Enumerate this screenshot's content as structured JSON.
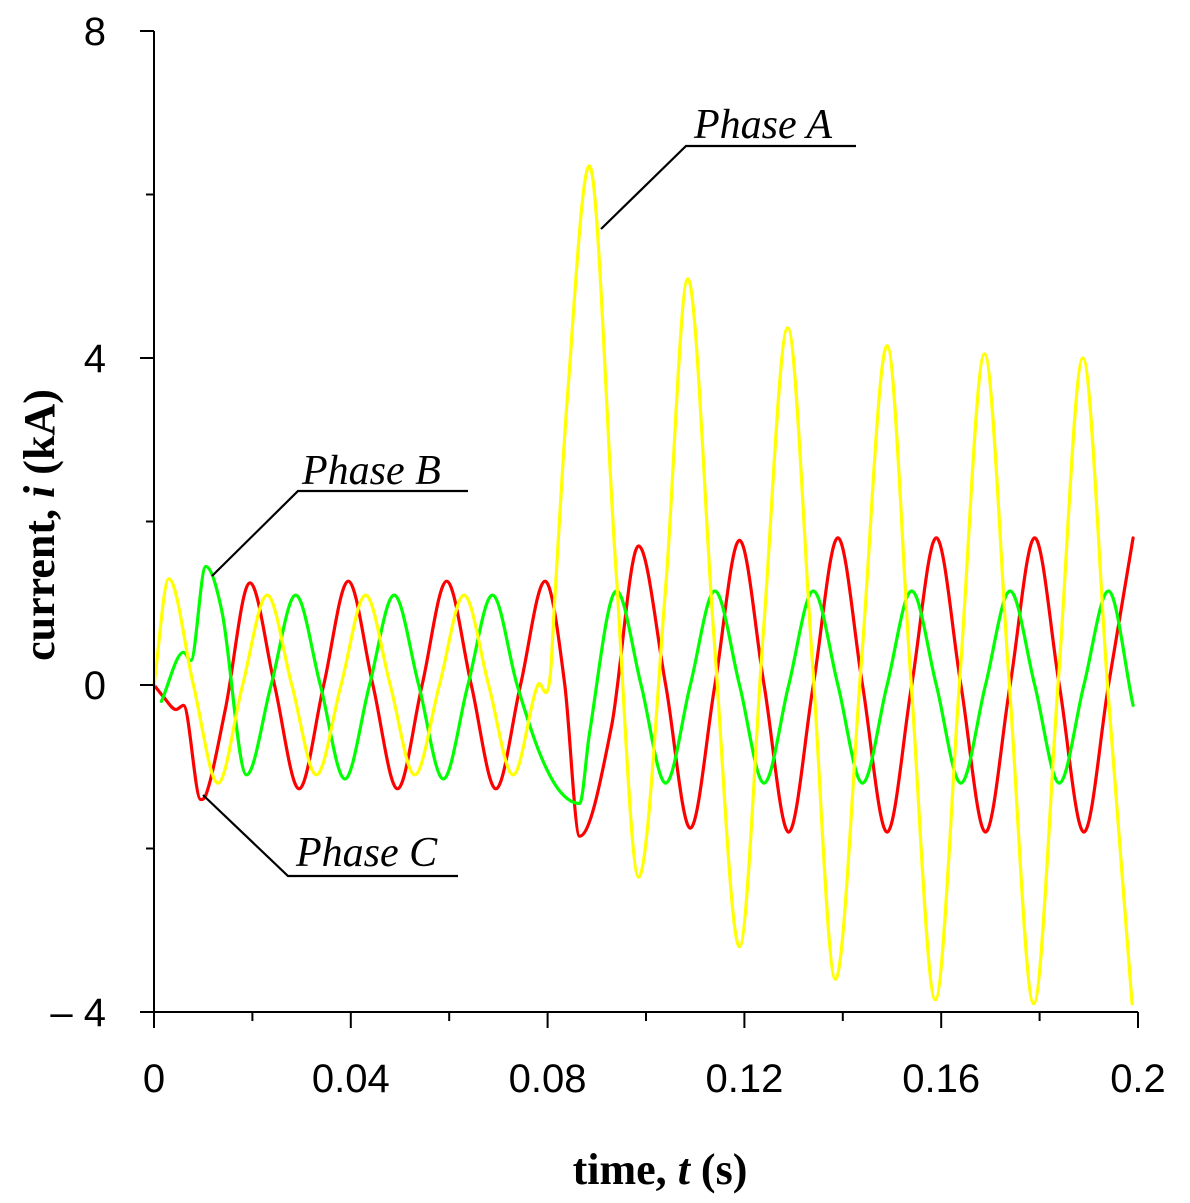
{
  "chart_data": {
    "type": "line",
    "title": "",
    "xlabel": {
      "pre": "time, ",
      "var": "t",
      "unit": " (s)"
    },
    "ylabel": {
      "pre": "current, ",
      "var": "i",
      "unit": " (kA)"
    },
    "xlim": [
      0,
      0.2
    ],
    "ylim": [
      -4,
      8
    ],
    "x_major_ticks": [
      0,
      0.04,
      0.08,
      0.12,
      0.16,
      0.2
    ],
    "x_major_tick_labels": [
      "0",
      "0.04",
      "0.08",
      "0.12",
      "0.16",
      "0.2"
    ],
    "x_minor_ticks": [
      0.02,
      0.06,
      0.1,
      0.14,
      0.18
    ],
    "y_major_ticks": [
      -4,
      0,
      4,
      8
    ],
    "y_major_tick_labels": [
      "– 4",
      "0",
      "4",
      "8"
    ],
    "y_minor_ticks": [
      -2,
      2,
      6
    ],
    "grid": false,
    "fault_time": 0.08,
    "series": [
      {
        "name": "Phase A",
        "color": "#ffff00",
        "x": [
          0,
          0.003,
          0.008,
          0.013,
          0.018,
          0.023,
          0.028,
          0.033,
          0.038,
          0.043,
          0.048,
          0.053,
          0.058,
          0.063,
          0.068,
          0.073,
          0.078,
          0.0805,
          0.0815,
          0.084,
          0.0885,
          0.0938,
          0.0985,
          0.104,
          0.1085,
          0.1138,
          0.119,
          0.1238,
          0.1288,
          0.1338,
          0.1385,
          0.1438,
          0.149,
          0.1538,
          0.1588,
          0.1638,
          0.1688,
          0.1738,
          0.1788,
          0.1838,
          0.1888,
          0.1938,
          0.1988
        ],
        "values": [
          0,
          1.3,
          0,
          -1.2,
          0,
          1.1,
          0,
          -1.1,
          0,
          1.1,
          0,
          -1.1,
          0,
          1.1,
          0,
          -1.1,
          0,
          0.1,
          1.1,
          3.5,
          6.35,
          1.5,
          -2.35,
          1.2,
          4.97,
          0.6,
          -3.2,
          0.6,
          4.37,
          0.3,
          -3.6,
          0.3,
          4.15,
          0.1,
          -3.85,
          0.1,
          4.05,
          0.05,
          -3.9,
          0.05,
          4.0,
          0,
          -3.9
        ]
      },
      {
        "name": "Phase B",
        "color": "#00ff00",
        "x": [
          0.0015,
          0.006,
          0.0075,
          0.0105,
          0.0138,
          0.0188,
          0.0238,
          0.0288,
          0.0338,
          0.0388,
          0.0438,
          0.0488,
          0.0538,
          0.0588,
          0.0638,
          0.0688,
          0.0738,
          0.0785,
          0.0825,
          0.0865,
          0.0885,
          0.094,
          0.099,
          0.104,
          0.109,
          0.114,
          0.119,
          0.124,
          0.129,
          0.134,
          0.139,
          0.144,
          0.149,
          0.154,
          0.159,
          0.164,
          0.169,
          0.174,
          0.179,
          0.184,
          0.189,
          0.194,
          0.199
        ],
        "values": [
          -0.2,
          0.4,
          0.3,
          1.45,
          0.9,
          -1.1,
          0,
          1.1,
          0,
          -1.15,
          0,
          1.1,
          0,
          -1.15,
          0,
          1.1,
          0,
          -0.85,
          -1.3,
          -1.45,
          -0.6,
          1.15,
          0,
          -1.2,
          0,
          1.15,
          0,
          -1.2,
          0,
          1.15,
          0,
          -1.2,
          0,
          1.15,
          0,
          -1.2,
          0,
          1.15,
          0,
          -1.2,
          0,
          1.15,
          -0.25
        ]
      },
      {
        "name": "Phase C",
        "color": "#ff0000",
        "x": [
          0,
          0.002,
          0.0045,
          0.006,
          0.0095,
          0.0105,
          0.0145,
          0.0195,
          0.0245,
          0.0295,
          0.0345,
          0.0395,
          0.0445,
          0.0495,
          0.0545,
          0.0595,
          0.0645,
          0.0695,
          0.0745,
          0.0795,
          0.0835,
          0.0865,
          0.093,
          0.0985,
          0.104,
          0.109,
          0.114,
          0.119,
          0.124,
          0.129,
          0.134,
          0.139,
          0.144,
          0.149,
          0.154,
          0.159,
          0.164,
          0.169,
          0.174,
          0.179,
          0.184,
          0.189,
          0.194,
          0.199
        ],
        "values": [
          0,
          -0.15,
          -0.3,
          -0.25,
          -1.4,
          -1.35,
          -0.3,
          1.25,
          0,
          -1.27,
          0,
          1.27,
          0,
          -1.27,
          0,
          1.27,
          0,
          -1.27,
          0,
          1.27,
          0,
          -1.85,
          -0.5,
          1.7,
          0,
          -1.75,
          0,
          1.77,
          0,
          -1.8,
          0,
          1.8,
          0,
          -1.8,
          0,
          1.8,
          0,
          -1.8,
          0,
          1.8,
          0,
          -1.8,
          0,
          1.8
        ]
      }
    ],
    "annotations": [
      {
        "text": "Phase A",
        "series": "Phase A",
        "label_pos": "upper-mid"
      },
      {
        "text": "Phase B",
        "series": "Phase B",
        "label_pos": "upper-left"
      },
      {
        "text": "Phase C",
        "series": "Phase C",
        "label_pos": "lower-left"
      }
    ]
  }
}
